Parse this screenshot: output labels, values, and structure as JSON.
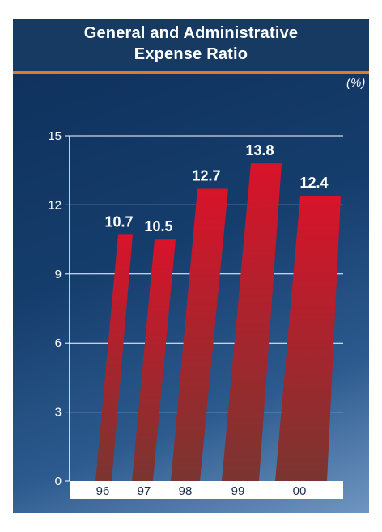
{
  "chart_data": {
    "type": "bar",
    "title_line1": "General and Administrative",
    "title_line2": "Expense Ratio",
    "unit": "(%)",
    "categories": [
      "96",
      "97",
      "98",
      "99",
      "00"
    ],
    "values": [
      10.7,
      10.5,
      12.7,
      13.8,
      12.4
    ],
    "ylim": [
      0,
      15
    ],
    "yticks": [
      "0",
      "3",
      "6",
      "9",
      "12",
      "15"
    ],
    "grid": true,
    "colors": {
      "bar_top": "#d8132a",
      "bar_bottom": "#7a3530",
      "accent": "#e07a2e"
    }
  }
}
